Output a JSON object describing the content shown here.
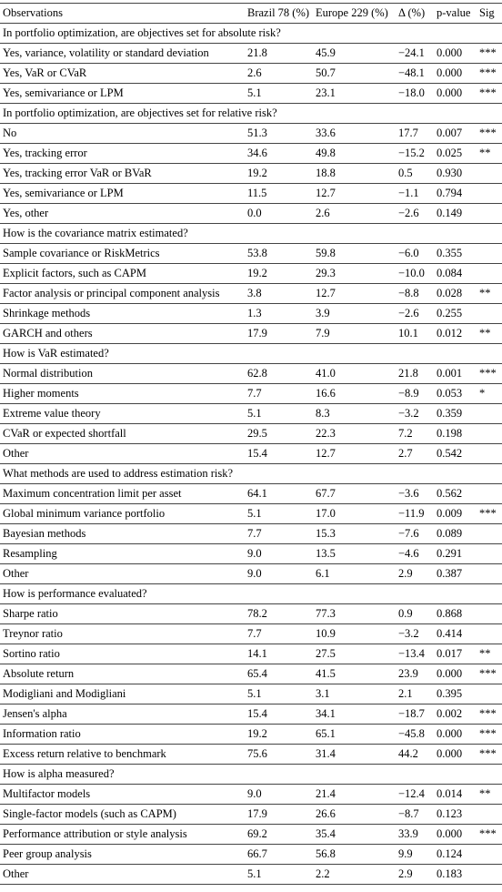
{
  "header": [
    "Observations",
    "Brazil 78 (%)",
    "Europe 229 (%)",
    "Δ (%)",
    "p-value",
    "Sig"
  ],
  "sections": [
    {
      "title": "In portfolio optimization, are objectives set for absolute risk?",
      "rows": [
        [
          "Yes, variance, volatility or standard deviation",
          "21.8",
          "45.9",
          "−24.1",
          "0.000",
          "***"
        ],
        [
          "Yes, VaR or CVaR",
          "2.6",
          "50.7",
          "−48.1",
          "0.000",
          "***"
        ],
        [
          "Yes, semivariance or LPM",
          "5.1",
          "23.1",
          "−18.0",
          "0.000",
          "***"
        ]
      ]
    },
    {
      "title": "In portfolio optimization, are objectives set for relative risk?",
      "rows": [
        [
          "No",
          "51.3",
          "33.6",
          "17.7",
          "0.007",
          "***"
        ],
        [
          "Yes, tracking error",
          "34.6",
          "49.8",
          "−15.2",
          "0.025",
          "**"
        ],
        [
          "Yes, tracking error VaR or BVaR",
          "19.2",
          "18.8",
          "0.5",
          "0.930"
        ],
        [
          "Yes, semivariance or LPM",
          "11.5",
          "12.7",
          "−1.1",
          "0.794"
        ],
        [
          "Yes, other",
          "0.0",
          "2.6",
          "−2.6",
          "0.149"
        ]
      ]
    },
    {
      "title": "How is the covariance matrix estimated?",
      "rows": [
        [
          "Sample covariance or RiskMetrics",
          "53.8",
          "59.8",
          "−6.0",
          "0.355"
        ],
        [
          "Explicit factors, such as CAPM",
          "19.2",
          "29.3",
          "−10.0",
          "0.084"
        ],
        [
          "Factor analysis or principal component analysis",
          "3.8",
          "12.7",
          "−8.8",
          "0.028",
          "**"
        ],
        [
          "Shrinkage methods",
          "1.3",
          "3.9",
          "−2.6",
          "0.255"
        ],
        [
          "GARCH and others",
          "17.9",
          "7.9",
          "10.1",
          "0.012",
          "**"
        ]
      ]
    },
    {
      "title": "How is VaR estimated?",
      "rows": [
        [
          "Normal distribution",
          "62.8",
          "41.0",
          "21.8",
          "0.001",
          "***"
        ],
        [
          "Higher moments",
          "7.7",
          "16.6",
          "−8.9",
          "0.053",
          "*"
        ],
        [
          "Extreme value theory",
          "5.1",
          "8.3",
          "−3.2",
          "0.359"
        ],
        [
          "CVaR or expected shortfall",
          "29.5",
          "22.3",
          "7.2",
          "0.198"
        ],
        [
          "Other",
          "15.4",
          "12.7",
          "2.7",
          "0.542"
        ]
      ]
    },
    {
      "title": "What methods are used to address estimation risk?",
      "rows": [
        [
          "Maximum concentration limit per asset",
          "64.1",
          "67.7",
          "−3.6",
          "0.562"
        ],
        [
          "Global minimum variance portfolio",
          "5.1",
          "17.0",
          "−11.9",
          "0.009",
          "***"
        ],
        [
          "Bayesian methods",
          "7.7",
          "15.3",
          "−7.6",
          "0.089"
        ],
        [
          "Resampling",
          "9.0",
          "13.5",
          "−4.6",
          "0.291"
        ],
        [
          "Other",
          "9.0",
          "6.1",
          "2.9",
          "0.387"
        ]
      ]
    },
    {
      "title": "How is performance evaluated?",
      "rows": [
        [
          "Sharpe ratio",
          "78.2",
          "77.3",
          "0.9",
          "0.868"
        ],
        [
          "Treynor ratio",
          "7.7",
          "10.9",
          "−3.2",
          "0.414"
        ],
        [
          "Sortino ratio",
          "14.1",
          "27.5",
          "−13.4",
          "0.017",
          "**"
        ],
        [
          "Absolute return",
          "65.4",
          "41.5",
          "23.9",
          "0.000",
          "***"
        ],
        [
          "Modigliani and Modigliani",
          "5.1",
          "3.1",
          "2.1",
          "0.395"
        ],
        [
          "Jensen's alpha",
          "15.4",
          "34.1",
          "−18.7",
          "0.002",
          "***"
        ],
        [
          "Information ratio",
          "19.2",
          "65.1",
          "−45.8",
          "0.000",
          "***"
        ],
        [
          "Excess return relative to benchmark",
          "75.6",
          "31.4",
          "44.2",
          "0.000",
          "***"
        ]
      ]
    },
    {
      "title": "How is alpha measured?",
      "rows": [
        [
          "Multifactor models",
          "9.0",
          "21.4",
          "−12.4",
          "0.014",
          "**"
        ],
        [
          "Single-factor models (such as CAPM)",
          "17.9",
          "26.6",
          "−8.7",
          "0.123"
        ],
        [
          "Performance attribution or style analysis",
          "69.2",
          "35.4",
          "33.9",
          "0.000",
          "***"
        ],
        [
          "Peer group analysis",
          "66.7",
          "56.8",
          "9.9",
          "0.124"
        ],
        [
          "Other",
          "5.1",
          "2.2",
          "2.9",
          "0.183"
        ]
      ]
    }
  ]
}
